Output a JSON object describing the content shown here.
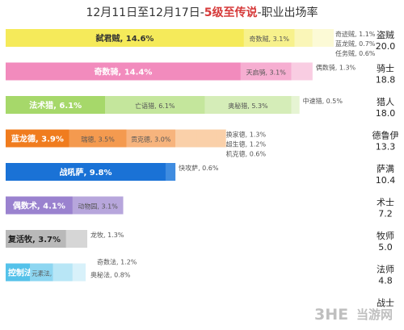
{
  "title": {
    "part1": "12月11日至12月17日-",
    "highlight": "5级至传说",
    "part2": "-职业出场率"
  },
  "watermark": {
    "logo_text": "3HE",
    "site_text": "当游网"
  },
  "chart_data": {
    "type": "bar",
    "orientation": "horizontal",
    "stacked": true,
    "unit": "%",
    "grid": false,
    "legend": "none",
    "xlim": [
      0,
      22
    ],
    "classes": [
      {
        "name": "盗贼",
        "value": "20.0",
        "total": 20.0,
        "colors": [
          "#f5ea5a",
          "#f7f18c",
          "#faf6b8",
          "#fcfad6"
        ],
        "segments": [
          {
            "label": "弑君贼",
            "value": 14.6
          },
          {
            "label": "奇数贼",
            "value": 3.1
          },
          {
            "label": "奇迹贼",
            "value": 1.1
          },
          {
            "label": "蓝龙贼",
            "value": 0.7
          },
          {
            "label": "任务贼",
            "value": 0.6
          }
        ]
      },
      {
        "name": "骑士",
        "value": "18.8",
        "total": 18.8,
        "colors": [
          "#f28bbd",
          "#f6aed1",
          "#f9cde2",
          "#fbe0ed"
        ],
        "segments": [
          {
            "label": "奇数骑",
            "value": 14.4
          },
          {
            "label": "天启骑",
            "value": 3.1
          },
          {
            "label": "偶数骑",
            "value": 1.3
          }
        ]
      },
      {
        "name": "猎人",
        "value": "18.0",
        "total": 18.0,
        "colors": [
          "#a6d86a",
          "#c4e69c",
          "#d5edb8",
          "#e6f4d3"
        ],
        "segments": [
          {
            "label": "法术猎",
            "value": 6.1
          },
          {
            "label": "亡语猎",
            "value": 6.1
          },
          {
            "label": "奥秘猎",
            "value": 5.3
          },
          {
            "label": "中速猎",
            "value": 0.5
          }
        ]
      },
      {
        "name": "德鲁伊",
        "value": "13.3",
        "total": 13.3,
        "colors": [
          "#f07c1e",
          "#f49a4f",
          "#f7b47d",
          "#fad0a9"
        ],
        "segments": [
          {
            "label": "蓝龙德",
            "value": 3.9
          },
          {
            "label": "瑞德",
            "value": 3.5
          },
          {
            "label": "贡克德",
            "value": 3.0
          },
          {
            "label": "换家德",
            "value": 1.3
          },
          {
            "label": "超生德",
            "value": 1.2
          },
          {
            "label": "机克德",
            "value": 0.6
          }
        ]
      },
      {
        "name": "萨满",
        "value": "10.4",
        "total": 10.4,
        "colors": [
          "#1a72d6",
          "#3f8ce0",
          "#7fb2ea"
        ],
        "segments": [
          {
            "label": "战吼萨",
            "value": 9.8
          },
          {
            "label": "快攻萨",
            "value": 0.6
          }
        ]
      },
      {
        "name": "术士",
        "value": "7.2",
        "total": 7.2,
        "colors": [
          "#9a82cf",
          "#b7a6dc"
        ],
        "segments": [
          {
            "label": "偶数术",
            "value": 4.1
          },
          {
            "label": "动物园",
            "value": 3.1
          }
        ]
      },
      {
        "name": "牧师",
        "value": "5.0",
        "total": 5.0,
        "colors": [
          "#b9b9b9",
          "#d6d6d6"
        ],
        "segments": [
          {
            "label": "复活牧",
            "value": 3.7
          },
          {
            "label": "龙牧",
            "value": 1.3
          }
        ]
      },
      {
        "name": "法师",
        "value": "4.8",
        "total": 4.8,
        "colors": [
          "#55c2ea",
          "#8dd6f1",
          "#b8e6f6",
          "#d8f1fa"
        ],
        "segments": [
          {
            "label": "控制法",
            "value": 1.5
          },
          {
            "label": "元素法",
            "value": 1.4
          },
          {
            "label": "奇数法",
            "value": 1.2
          },
          {
            "label": "奥秘法",
            "value": 0.8
          }
        ]
      },
      {
        "name": "战士",
        "value": "",
        "total": 0,
        "colors": [],
        "segments": []
      }
    ]
  }
}
